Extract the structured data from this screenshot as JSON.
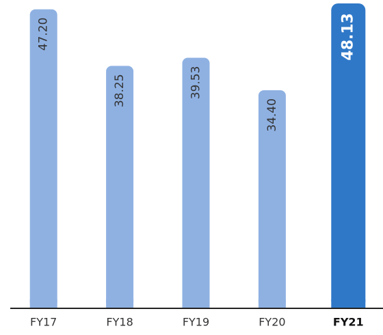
{
  "chart_data": {
    "type": "bar",
    "categories": [
      "FY17",
      "FY18",
      "FY19",
      "FY20",
      "FY21"
    ],
    "values": [
      47.2,
      38.25,
      39.53,
      34.4,
      48.13
    ],
    "value_labels": [
      "47.20",
      "38.25",
      "39.53",
      "34.40",
      "48.13"
    ],
    "colors": [
      "#8fb1e2",
      "#8fb1e2",
      "#8fb1e2",
      "#8fb1e2",
      "#2f78c8"
    ],
    "highlight": "FY21"
  }
}
